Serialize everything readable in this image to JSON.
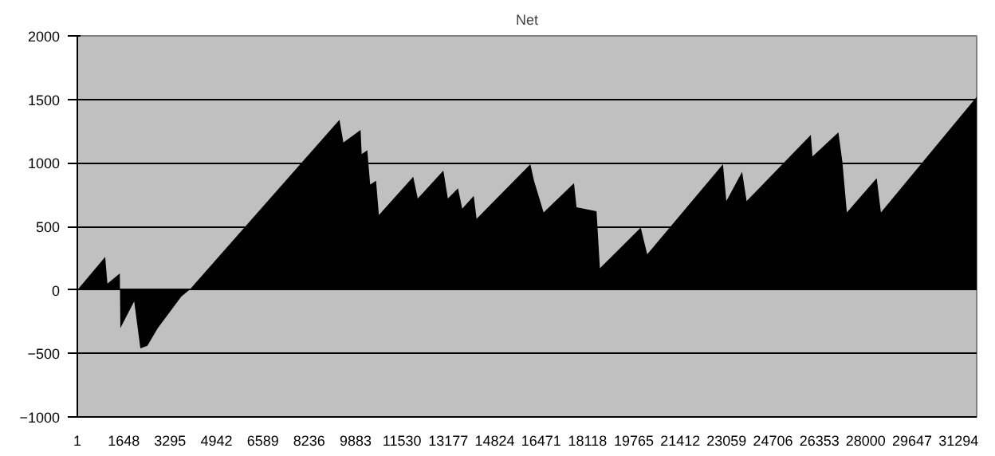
{
  "chart_data": {
    "type": "area",
    "title": "Net",
    "x": [
      1,
      990,
      1070,
      1510,
      1530,
      2020,
      2240,
      2490,
      2860,
      3700,
      3980,
      9310,
      9450,
      10060,
      10100,
      10300,
      10400,
      10610,
      10710,
      11930,
      12090,
      13000,
      13160,
      13520,
      13670,
      14080,
      14180,
      16090,
      16220,
      16560,
      17640,
      17730,
      18440,
      18560,
      20010,
      20240,
      22930,
      23050,
      23610,
      23770,
      26050,
      26110,
      27030,
      27170,
      27330,
      28390,
      28540,
      31940
    ],
    "series": [
      {
        "color": "#000000",
        "values": [
          0,
          260,
          50,
          130,
          -300,
          -90,
          -460,
          -440,
          -300,
          -50,
          0,
          1340,
          1160,
          1260,
          1070,
          1100,
          830,
          860,
          590,
          890,
          720,
          940,
          720,
          800,
          640,
          740,
          560,
          990,
          860,
          610,
          840,
          650,
          620,
          170,
          490,
          280,
          990,
          700,
          930,
          700,
          1220,
          1050,
          1240,
          1010,
          610,
          880,
          610,
          1520
        ]
      }
    ],
    "xlim": [
      1,
      31940
    ],
    "xticks": [
      1,
      1648,
      3295,
      4942,
      6589,
      8236,
      9883,
      11530,
      13177,
      14824,
      16471,
      18118,
      19765,
      21412,
      23059,
      24706,
      26353,
      28000,
      29647,
      31294
    ],
    "ylim": [
      -1000,
      2000
    ],
    "yticks": [
      -1000,
      -500,
      0,
      500,
      1000,
      1500,
      2000
    ],
    "grid": "y"
  }
}
